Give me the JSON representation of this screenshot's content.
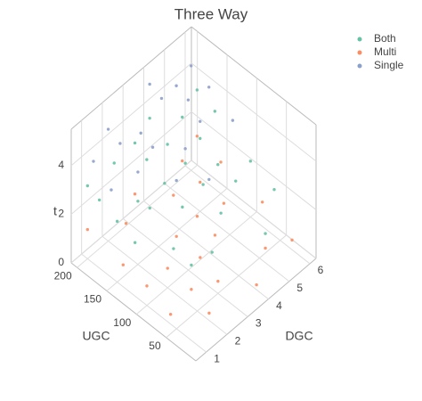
{
  "chart_data": {
    "type": "scatter3d",
    "title": "Three Way",
    "xlabel": "DGC",
    "ylabel": "UGC",
    "zlabel": "t",
    "xlim": [
      0.5,
      6.3
    ],
    "ylim": [
      0,
      210
    ],
    "zlim": [
      0,
      5.5
    ],
    "xticks": [
      1,
      2,
      3,
      4,
      5,
      6
    ],
    "yticks": [
      50,
      100,
      150,
      200
    ],
    "zticks": [
      0,
      2,
      4
    ],
    "grid": true,
    "legend": "top-right",
    "series": [
      {
        "name": "Both",
        "color": "#66c2a5",
        "x": [
          1,
          1,
          2,
          2,
          2,
          3,
          3,
          3,
          4,
          4,
          4,
          5,
          5,
          5,
          6,
          6,
          1,
          2,
          3,
          4,
          5,
          6,
          3,
          4,
          5,
          2,
          1,
          6
        ],
        "y": [
          180,
          120,
          190,
          150,
          90,
          170,
          110,
          60,
          200,
          140,
          80,
          180,
          120,
          40,
          190,
          100,
          150,
          60,
          140,
          170,
          150,
          160,
          190,
          110,
          90,
          130,
          200,
          60
        ],
        "z": [
          2.8,
          2.2,
          3.4,
          2.6,
          1.8,
          3.2,
          2.4,
          1.5,
          3.6,
          2.9,
          2.0,
          3.3,
          2.5,
          1.2,
          3.5,
          2.3,
          2.5,
          1.7,
          2.8,
          3.1,
          3.0,
          3.2,
          3.5,
          2.6,
          2.4,
          2.7,
          3.0,
          1.9
        ]
      },
      {
        "name": "Multi",
        "color": "#fc8d62",
        "x": [
          1,
          1,
          1,
          2,
          2,
          2,
          3,
          3,
          3,
          4,
          4,
          4,
          5,
          5,
          5,
          6,
          6,
          6,
          2,
          3,
          4,
          5,
          1,
          6
        ],
        "y": [
          200,
          140,
          60,
          170,
          100,
          30,
          190,
          120,
          50,
          160,
          90,
          20,
          180,
          110,
          40,
          150,
          80,
          30,
          60,
          80,
          120,
          150,
          100,
          190
        ],
        "z": [
          1.2,
          0.9,
          0.4,
          1.3,
          0.8,
          0.3,
          1.4,
          1.0,
          0.5,
          1.2,
          0.9,
          0.2,
          1.5,
          1.1,
          0.6,
          1.3,
          1.0,
          0.4,
          0.7,
          0.9,
          1.1,
          1.2,
          0.8,
          1.6
        ]
      },
      {
        "name": "Single",
        "color": "#8da0cb",
        "x": [
          1,
          2,
          3,
          4,
          5,
          6,
          2,
          3,
          4,
          5,
          6,
          1,
          3,
          4,
          5,
          6,
          2,
          4
        ],
        "y": [
          190,
          200,
          180,
          200,
          190,
          170,
          150,
          160,
          140,
          170,
          130,
          160,
          120,
          180,
          150,
          200,
          180,
          100
        ],
        "z": [
          4.2,
          4.6,
          4.1,
          5.0,
          4.4,
          4.0,
          3.8,
          3.9,
          3.5,
          4.2,
          3.4,
          3.6,
          3.3,
          4.8,
          3.7,
          4.3,
          4.4,
          3.0
        ]
      }
    ]
  }
}
